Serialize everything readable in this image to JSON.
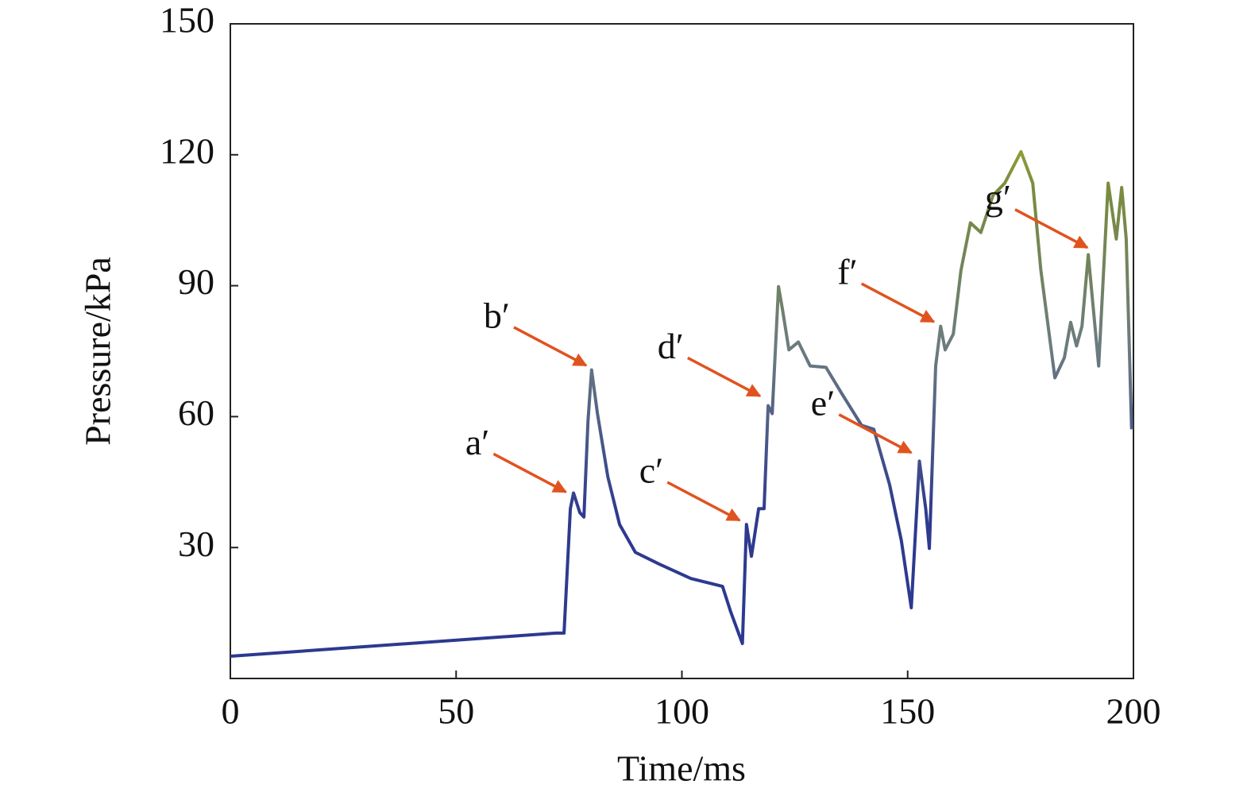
{
  "chart_data": {
    "type": "line",
    "xlabel": "Time/ms",
    "ylabel": "Pressure/kPa",
    "xlim": [
      0,
      200
    ],
    "xticks": [
      0,
      50,
      100,
      150,
      200
    ],
    "ylim": [
      0,
      150
    ],
    "yticks": [
      30,
      60,
      90,
      120,
      150
    ],
    "color_scale": [
      "#2b3990",
      "#2e3a8e",
      "#6b7b80",
      "#7a8c3c",
      "#d2dc2a"
    ],
    "arrow_color": "#e0531e",
    "series": [
      {
        "name": "Pressure",
        "color": "#2b3990",
        "x": [
          0,
          72.1,
          73.9,
          75.3,
          76,
          77.4,
          78.3,
          79.2,
          80,
          81.3,
          83.6,
          86.2,
          89.7,
          95,
          102,
          109,
          110.8,
          113.4,
          114.3,
          115.4,
          117,
          118.2,
          119.1,
          120,
          121.4,
          122.3,
          123.7,
          125.8,
          128.4,
          131.9,
          135.4,
          139.8,
          142.5,
          146,
          148.6,
          150.8,
          152.6,
          154,
          154.8,
          156.2,
          157.3,
          158.3,
          160.1,
          161.8,
          163.9,
          166.2,
          168.9,
          171.5,
          175.1,
          177.7,
          179.5,
          182.6,
          184.7,
          186.1,
          187.4,
          188.6,
          190,
          192.3,
          194.4,
          196.2,
          197.4,
          198.4,
          199.6
        ],
        "values": [
          5.1,
          10.4,
          10.4,
          38.9,
          42.5,
          38,
          37,
          58.9,
          70.7,
          60.7,
          46.2,
          35.3,
          28.9,
          26.2,
          22.9,
          21.1,
          15.3,
          8,
          35.3,
          28,
          38.9,
          38.9,
          62.5,
          60.7,
          89.8,
          84.4,
          75.3,
          77.1,
          71.6,
          71.3,
          65.3,
          58,
          57.1,
          44.4,
          31.6,
          16.2,
          49.8,
          38.9,
          29.8,
          71.6,
          80.7,
          75.3,
          78.9,
          93.5,
          104.4,
          102.2,
          110.7,
          113.5,
          120.7,
          113.5,
          93.5,
          68.9,
          73.5,
          81.6,
          76.2,
          80.7,
          97.1,
          71.6,
          113.5,
          100.7,
          112.5,
          100.7,
          57.1
        ]
      }
    ],
    "annotations": [
      {
        "text": "a′",
        "x": 75,
        "y": 42
      },
      {
        "text": "b′",
        "x": 79.5,
        "y": 71
      },
      {
        "text": "c′",
        "x": 113.5,
        "y": 35.5
      },
      {
        "text": "d′",
        "x": 118,
        "y": 64
      },
      {
        "text": "e′",
        "x": 151.5,
        "y": 51
      },
      {
        "text": "f′",
        "x": 156.5,
        "y": 81
      },
      {
        "text": "g′",
        "x": 190.5,
        "y": 98
      }
    ]
  }
}
